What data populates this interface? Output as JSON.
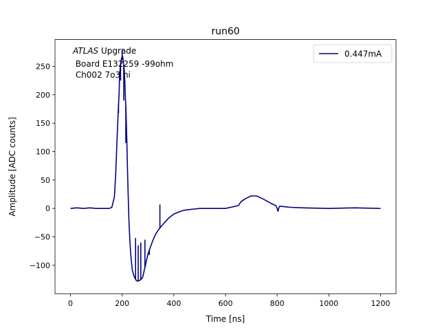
{
  "chart_data": {
    "type": "line",
    "title": "run60",
    "xlabel": "Time [ns]",
    "ylabel": "Amplitude [ADC counts]",
    "xlim": [
      -60,
      1260
    ],
    "ylim": [
      -150,
      297
    ],
    "xticks": [
      0,
      200,
      400,
      600,
      800,
      1000,
      1200
    ],
    "yticks": [
      -100,
      -50,
      0,
      50,
      100,
      150,
      200,
      250
    ],
    "grid": false,
    "legend": {
      "placement": "top-right",
      "entries": [
        "0.447mA"
      ]
    },
    "annotation": {
      "lines": [
        {
          "italic": "ATLAS",
          "rest": " Upgrade"
        },
        {
          "italic": "",
          "rest": " Board E132259 -99ohm"
        },
        {
          "italic": "",
          "rest": " Ch002 7o3 hi"
        }
      ]
    },
    "series": [
      {
        "name": "0.447mA",
        "color": "#000080",
        "x": [
          0,
          25,
          50,
          75,
          100,
          125,
          150,
          160,
          170,
          175,
          180,
          185,
          188,
          190,
          192,
          195,
          198,
          200,
          202,
          205,
          208,
          210,
          212,
          215,
          218,
          220,
          223,
          226,
          230,
          235,
          240,
          245,
          250,
          255,
          260,
          265,
          270,
          275,
          280,
          285,
          290,
          295,
          300,
          310,
          320,
          330,
          340,
          350,
          360,
          370,
          380,
          400,
          420,
          440,
          460,
          480,
          500,
          550,
          600,
          650,
          660,
          680,
          700,
          720,
          740,
          760,
          780,
          795,
          800,
          803,
          806,
          810,
          830,
          850,
          900,
          1000,
          1100,
          1200
        ],
        "y": [
          0,
          1,
          0,
          1,
          0,
          0,
          0,
          2,
          20,
          60,
          120,
          175,
          200,
          235,
          245,
          258,
          265,
          262,
          268,
          255,
          245,
          225,
          200,
          170,
          120,
          80,
          30,
          -20,
          -60,
          -90,
          -110,
          -118,
          -123,
          -127,
          -128,
          -127,
          -126,
          -124,
          -120,
          -110,
          -100,
          -90,
          -80,
          -67,
          -55,
          -45,
          -38,
          -32,
          -27,
          -22,
          -17,
          -10,
          -6,
          -3,
          -2,
          -1,
          0,
          0,
          0,
          5,
          12,
          18,
          22,
          22,
          18,
          13,
          8,
          5,
          0,
          -5,
          0,
          4,
          3,
          2,
          1,
          0,
          1,
          0
        ]
      },
      {
        "name": "spikes",
        "color": "#000080",
        "points": [
          {
            "x": 186,
            "y": 168
          },
          {
            "x": 194,
            "y": 225
          },
          {
            "x": 200,
            "y": 280
          },
          {
            "x": 206,
            "y": 190
          },
          {
            "x": 214,
            "y": 115
          },
          {
            "x": 252,
            "y": -52
          },
          {
            "x": 262,
            "y": -65
          },
          {
            "x": 272,
            "y": -60
          },
          {
            "x": 288,
            "y": -55
          },
          {
            "x": 305,
            "y": -82
          },
          {
            "x": 346,
            "y": 7
          }
        ]
      }
    ]
  }
}
